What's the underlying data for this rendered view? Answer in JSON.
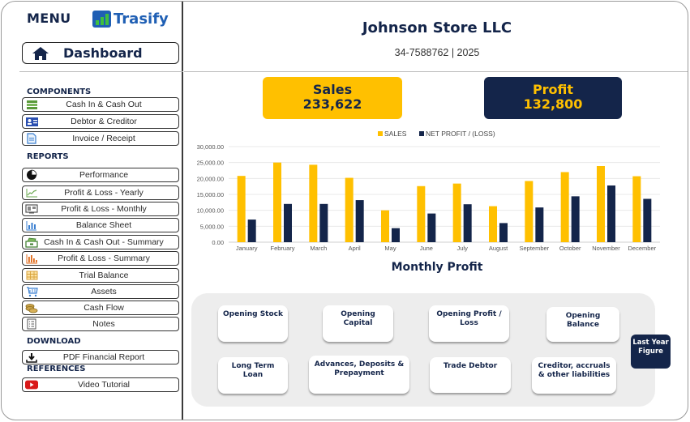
{
  "sidebar": {
    "menu_title": "MENU",
    "logo_text": "Trasify",
    "dashboard_label": "Dashboard",
    "sections": {
      "components": "COMPONENTS",
      "reports": "REPORTS",
      "download": "DOWNLOAD",
      "references": "REFERENCES"
    },
    "components": [
      {
        "label": "Cash In & Cash Out",
        "icon": "money-stack-icon"
      },
      {
        "label": "Debtor & Creditor",
        "icon": "contact-card-icon"
      },
      {
        "label": "Invoice / Receipt",
        "icon": "document-icon"
      }
    ],
    "reports": [
      {
        "label": "Performance",
        "icon": "pie-chart-icon"
      },
      {
        "label": "Profit & Loss - Yearly",
        "icon": "line-chart-icon"
      },
      {
        "label": "Profit & Loss - Monthly",
        "icon": "monitor-icon"
      },
      {
        "label": "Balance Sheet",
        "icon": "bar-chart-icon"
      },
      {
        "label": "Cash In & Cash Out - Summary",
        "icon": "cash-register-icon"
      },
      {
        "label": "Profit & Loss - Summary",
        "icon": "column-chart-icon"
      },
      {
        "label": "Trial Balance",
        "icon": "table-icon"
      },
      {
        "label": "Assets",
        "icon": "cart-icon"
      },
      {
        "label": "Cash Flow",
        "icon": "coins-icon"
      },
      {
        "label": "Notes",
        "icon": "notes-list-icon"
      }
    ],
    "download": [
      {
        "label": "PDF Financial Report",
        "icon": "download-icon"
      }
    ],
    "references": [
      {
        "label": "Video Tutorial",
        "icon": "youtube-play-icon"
      }
    ]
  },
  "header": {
    "company": "Johnson Store LLC",
    "subinfo": "34-7588762 | 2025"
  },
  "kpis": {
    "sales_label": "Sales",
    "sales_value": "233,622",
    "profit_label": "Profit",
    "profit_value": "132,800"
  },
  "colors": {
    "navy": "#14254a",
    "gold": "#ffc000",
    "logo_blue": "#1f5fb4",
    "logo_green": "#3fbf3f"
  },
  "chart_data": {
    "type": "bar",
    "title": "Monthly Profit",
    "xlabel": "",
    "ylabel": "",
    "ylim": [
      0,
      30000
    ],
    "yticks": [
      "0.00",
      "5,000.00",
      "10,000.00",
      "15,000.00",
      "20,000.00",
      "25,000.00",
      "30,000.00"
    ],
    "grid": true,
    "legend": "top-center",
    "categories": [
      "January",
      "February",
      "March",
      "April",
      "May",
      "June",
      "July",
      "August",
      "September",
      "October",
      "November",
      "December"
    ],
    "series": [
      {
        "name": "SALES",
        "color": "#ffc000",
        "values": [
          20800,
          25000,
          24300,
          20200,
          10000,
          17600,
          18400,
          11300,
          19200,
          22000,
          23900,
          20700
        ]
      },
      {
        "name": "NET PROFIT / (LOSS)",
        "color": "#14254a",
        "values": [
          7100,
          12000,
          12000,
          13200,
          4400,
          9000,
          11900,
          6000,
          10900,
          14400,
          17800,
          13600
        ]
      }
    ]
  },
  "cards": {
    "opening_stock": "Opening Stock",
    "opening_capital": "Opening Capital",
    "opening_profit_loss": "Opening Profit / Loss",
    "opening_balance": "Opening Balance",
    "long_term_loan": "Long Term Loan",
    "advances": "Advances, Deposits & Prepayment",
    "trade_debtor": "Trade Debtor",
    "creditor": "Creditor, accruals & other liabilities",
    "last_year": "Last Year Figure"
  }
}
